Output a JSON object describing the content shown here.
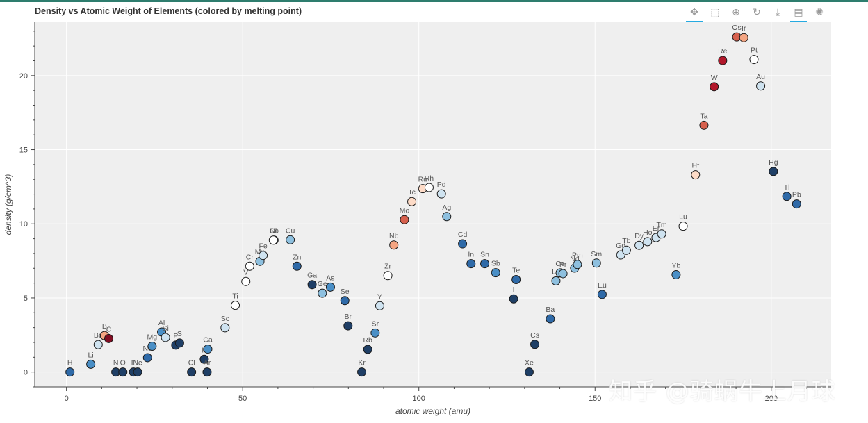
{
  "title": "Density vs Atomic Weight of Elements (colored by melting point)",
  "toolbar": {
    "tools": [
      {
        "icon": "pan-icon",
        "glyph": "✥",
        "active": true
      },
      {
        "icon": "box-zoom-icon",
        "glyph": "⬚",
        "active": false
      },
      {
        "icon": "wheel-zoom-icon",
        "glyph": "⊕",
        "active": false
      },
      {
        "icon": "reset-icon",
        "glyph": "↻",
        "active": false
      },
      {
        "icon": "save-icon",
        "glyph": "⤓",
        "active": false
      },
      {
        "icon": "hover-icon",
        "glyph": "▤",
        "active": true
      },
      {
        "icon": "bokeh-logo-icon",
        "glyph": "✺",
        "active": false
      }
    ]
  },
  "watermark": "知乎 @骑蜗牛上月球",
  "chart_data": {
    "type": "scatter",
    "title": "Density vs Atomic Weight of Elements (colored by melting point)",
    "xlabel": "atomic weight (amu)",
    "ylabel": "density (g/cm^3)",
    "xlim": [
      -9,
      217
    ],
    "ylim": [
      -1,
      23.6
    ],
    "xticks": [
      0,
      50,
      100,
      150,
      200
    ],
    "yticks": [
      0,
      5,
      10,
      15,
      20
    ],
    "grid": true,
    "background": "#efefef",
    "colors": {
      "c1": "#1f3f66",
      "c2": "#2f6aa8",
      "c3": "#4a8fc6",
      "c4": "#8ec0df",
      "c5": "#cfe3f0",
      "c6": "#ffffff",
      "c7": "#fddbc7",
      "c8": "#f4a582",
      "c9": "#d6604d",
      "c10": "#b2182b",
      "c11": "#7f0d22"
    },
    "points": [
      {
        "sym": "H",
        "x": 1.0,
        "y": 0.0,
        "c": "c2"
      },
      {
        "sym": "Li",
        "x": 6.9,
        "y": 0.53,
        "c": "c3"
      },
      {
        "sym": "Be",
        "x": 9.0,
        "y": 1.85,
        "c": "c5"
      },
      {
        "sym": "B",
        "x": 10.8,
        "y": 2.46,
        "c": "c8"
      },
      {
        "sym": "C",
        "x": 12.0,
        "y": 2.26,
        "c": "c11"
      },
      {
        "sym": "N",
        "x": 14.0,
        "y": 0.0,
        "c": "c1"
      },
      {
        "sym": "O",
        "x": 16.0,
        "y": 0.0,
        "c": "c1"
      },
      {
        "sym": "F",
        "x": 19.0,
        "y": 0.0,
        "c": "c1"
      },
      {
        "sym": "Ne",
        "x": 20.2,
        "y": 0.0,
        "c": "c1"
      },
      {
        "sym": "Na",
        "x": 23.0,
        "y": 0.97,
        "c": "c2"
      },
      {
        "sym": "Mg",
        "x": 24.3,
        "y": 1.74,
        "c": "c3"
      },
      {
        "sym": "Al",
        "x": 27.0,
        "y": 2.7,
        "c": "c3"
      },
      {
        "sym": "Si",
        "x": 28.1,
        "y": 2.33,
        "c": "c5"
      },
      {
        "sym": "P",
        "x": 31.0,
        "y": 1.82,
        "c": "c1"
      },
      {
        "sym": "S",
        "x": 32.1,
        "y": 1.96,
        "c": "c1"
      },
      {
        "sym": "Cl",
        "x": 35.5,
        "y": 0.0,
        "c": "c1"
      },
      {
        "sym": "K",
        "x": 39.1,
        "y": 0.86,
        "c": "c1"
      },
      {
        "sym": "Ar",
        "x": 39.9,
        "y": 0.0,
        "c": "c1"
      },
      {
        "sym": "Ca",
        "x": 40.1,
        "y": 1.55,
        "c": "c3"
      },
      {
        "sym": "Sc",
        "x": 45.0,
        "y": 2.99,
        "c": "c5"
      },
      {
        "sym": "Ti",
        "x": 47.9,
        "y": 4.5,
        "c": "c6"
      },
      {
        "sym": "V",
        "x": 50.9,
        "y": 6.11,
        "c": "c6"
      },
      {
        "sym": "Cr",
        "x": 52.0,
        "y": 7.14,
        "c": "c6"
      },
      {
        "sym": "Mn",
        "x": 54.9,
        "y": 7.47,
        "c": "c4"
      },
      {
        "sym": "Fe",
        "x": 55.8,
        "y": 7.87,
        "c": "c5"
      },
      {
        "sym": "Co",
        "x": 58.9,
        "y": 8.9,
        "c": "c5"
      },
      {
        "sym": "Ni",
        "x": 58.7,
        "y": 8.9,
        "c": "c6"
      },
      {
        "sym": "Cu",
        "x": 63.5,
        "y": 8.92,
        "c": "c4"
      },
      {
        "sym": "Zn",
        "x": 65.4,
        "y": 7.14,
        "c": "c2"
      },
      {
        "sym": "Ga",
        "x": 69.7,
        "y": 5.9,
        "c": "c1"
      },
      {
        "sym": "Ge",
        "x": 72.6,
        "y": 5.32,
        "c": "c4"
      },
      {
        "sym": "As",
        "x": 74.9,
        "y": 5.73,
        "c": "c3"
      },
      {
        "sym": "Se",
        "x": 79.0,
        "y": 4.82,
        "c": "c2"
      },
      {
        "sym": "Br",
        "x": 79.9,
        "y": 3.12,
        "c": "c1"
      },
      {
        "sym": "Kr",
        "x": 83.8,
        "y": 0.0,
        "c": "c1"
      },
      {
        "sym": "Rb",
        "x": 85.5,
        "y": 1.53,
        "c": "c1"
      },
      {
        "sym": "Sr",
        "x": 87.6,
        "y": 2.64,
        "c": "c3"
      },
      {
        "sym": "Y",
        "x": 88.9,
        "y": 4.47,
        "c": "c5"
      },
      {
        "sym": "Zr",
        "x": 91.2,
        "y": 6.51,
        "c": "c6"
      },
      {
        "sym": "Nb",
        "x": 92.9,
        "y": 8.57,
        "c": "c8"
      },
      {
        "sym": "Mo",
        "x": 95.9,
        "y": 10.28,
        "c": "c9"
      },
      {
        "sym": "Tc",
        "x": 98.0,
        "y": 11.5,
        "c": "c7"
      },
      {
        "sym": "Ru",
        "x": 101.1,
        "y": 12.37,
        "c": "c7"
      },
      {
        "sym": "Rh",
        "x": 102.9,
        "y": 12.45,
        "c": "c6"
      },
      {
        "sym": "Pd",
        "x": 106.4,
        "y": 12.02,
        "c": "c5"
      },
      {
        "sym": "Ag",
        "x": 107.9,
        "y": 10.49,
        "c": "c4"
      },
      {
        "sym": "Cd",
        "x": 112.4,
        "y": 8.65,
        "c": "c2"
      },
      {
        "sym": "In",
        "x": 114.8,
        "y": 7.31,
        "c": "c2"
      },
      {
        "sym": "Sn",
        "x": 118.7,
        "y": 7.31,
        "c": "c2"
      },
      {
        "sym": "Sb",
        "x": 121.8,
        "y": 6.7,
        "c": "c3"
      },
      {
        "sym": "Te",
        "x": 127.6,
        "y": 6.24,
        "c": "c2"
      },
      {
        "sym": "I",
        "x": 126.9,
        "y": 4.94,
        "c": "c1"
      },
      {
        "sym": "Xe",
        "x": 131.3,
        "y": 0.0,
        "c": "c1"
      },
      {
        "sym": "Cs",
        "x": 132.9,
        "y": 1.87,
        "c": "c1"
      },
      {
        "sym": "Ba",
        "x": 137.3,
        "y": 3.59,
        "c": "c2"
      },
      {
        "sym": "La",
        "x": 138.9,
        "y": 6.15,
        "c": "c4"
      },
      {
        "sym": "Ce",
        "x": 140.1,
        "y": 6.69,
        "c": "c4"
      },
      {
        "sym": "Pr",
        "x": 140.9,
        "y": 6.64,
        "c": "c4"
      },
      {
        "sym": "Nd",
        "x": 144.2,
        "y": 7.01,
        "c": "c4"
      },
      {
        "sym": "Pm",
        "x": 145.0,
        "y": 7.26,
        "c": "c4"
      },
      {
        "sym": "Sm",
        "x": 150.4,
        "y": 7.35,
        "c": "c4"
      },
      {
        "sym": "Eu",
        "x": 152.0,
        "y": 5.24,
        "c": "c2"
      },
      {
        "sym": "Gd",
        "x": 157.3,
        "y": 7.9,
        "c": "c5"
      },
      {
        "sym": "Tb",
        "x": 158.9,
        "y": 8.22,
        "c": "c5"
      },
      {
        "sym": "Dy",
        "x": 162.5,
        "y": 8.55,
        "c": "c5"
      },
      {
        "sym": "Ho",
        "x": 164.9,
        "y": 8.8,
        "c": "c5"
      },
      {
        "sym": "Er",
        "x": 167.3,
        "y": 9.07,
        "c": "c5"
      },
      {
        "sym": "Tm",
        "x": 168.9,
        "y": 9.32,
        "c": "c5"
      },
      {
        "sym": "Yb",
        "x": 173.0,
        "y": 6.57,
        "c": "c3"
      },
      {
        "sym": "Lu",
        "x": 175.0,
        "y": 9.84,
        "c": "c6"
      },
      {
        "sym": "Hf",
        "x": 178.5,
        "y": 13.31,
        "c": "c7"
      },
      {
        "sym": "Ta",
        "x": 180.9,
        "y": 16.65,
        "c": "c9"
      },
      {
        "sym": "W",
        "x": 183.8,
        "y": 19.25,
        "c": "c10"
      },
      {
        "sym": "Re",
        "x": 186.2,
        "y": 21.02,
        "c": "c10"
      },
      {
        "sym": "Os",
        "x": 190.2,
        "y": 22.61,
        "c": "c9"
      },
      {
        "sym": "Ir",
        "x": 192.2,
        "y": 22.56,
        "c": "c8"
      },
      {
        "sym": "Pt",
        "x": 195.1,
        "y": 21.09,
        "c": "c6"
      },
      {
        "sym": "Au",
        "x": 197.0,
        "y": 19.3,
        "c": "c5"
      },
      {
        "sym": "Hg",
        "x": 200.6,
        "y": 13.53,
        "c": "c1"
      },
      {
        "sym": "Tl",
        "x": 204.4,
        "y": 11.85,
        "c": "c2"
      },
      {
        "sym": "Pb",
        "x": 207.2,
        "y": 11.34,
        "c": "c2"
      }
    ]
  }
}
